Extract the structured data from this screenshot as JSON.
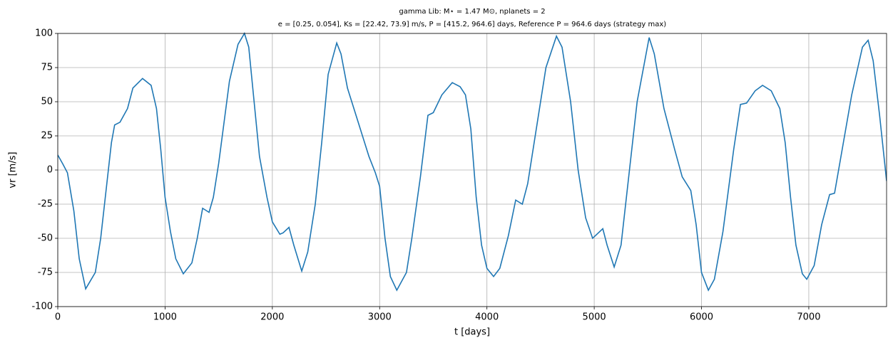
{
  "chart_data": {
    "type": "line",
    "title": "gamma Lib: M⋆ = 1.47 M⊙, nplanets = 2",
    "subtitle": "e = [0.25, 0.054], Ks = [22.42, 73.9] m/s, P = [415.2, 964.6] days, Reference P = 964.6 days (strategy max)",
    "x_label": "t [days]",
    "y_label": "vr [m/s]",
    "x": [
      0,
      50,
      90,
      150,
      200,
      260,
      350,
      400,
      450,
      500,
      530,
      580,
      650,
      700,
      790,
      870,
      920,
      960,
      1000,
      1050,
      1100,
      1170,
      1250,
      1300,
      1350,
      1410,
      1450,
      1500,
      1550,
      1600,
      1680,
      1740,
      1780,
      1830,
      1880,
      1950,
      2000,
      2070,
      2100,
      2155,
      2200,
      2274,
      2330,
      2400,
      2460,
      2520,
      2600,
      2640,
      2700,
      2800,
      2900,
      2960,
      3000,
      3050,
      3100,
      3160,
      3250,
      3300,
      3380,
      3450,
      3500,
      3580,
      3677,
      3750,
      3800,
      3850,
      3900,
      3950,
      4000,
      4062,
      4120,
      4200,
      4268,
      4330,
      4380,
      4450,
      4550,
      4648,
      4700,
      4780,
      4850,
      4920,
      4985,
      5080,
      5120,
      5186,
      5250,
      5300,
      5400,
      5512,
      5560,
      5650,
      5750,
      5820,
      5900,
      5950,
      6000,
      6064,
      6120,
      6200,
      6300,
      6363,
      6420,
      6500,
      6569,
      6650,
      6730,
      6780,
      6830,
      6880,
      6940,
      6981,
      7050,
      7120,
      7194,
      7240,
      7300,
      7400,
      7500,
      7553,
      7600,
      7660,
      7725
    ],
    "series": [
      {
        "color": "#1f77b4",
        "values": [
          11,
          4,
          -2,
          -30,
          -65,
          -87,
          -75,
          -50,
          -15,
          20,
          33,
          35,
          45,
          60,
          67,
          62,
          45,
          15,
          -20,
          -45,
          -65,
          -76,
          -68,
          -50,
          -28,
          -31,
          -20,
          5,
          35,
          65,
          92,
          100,
          90,
          50,
          10,
          -20,
          -38,
          -47,
          -46,
          -42,
          -55,
          -74,
          -60,
          -25,
          20,
          70,
          93,
          85,
          60,
          35,
          10,
          -2,
          -12,
          -50,
          -78,
          -88,
          -75,
          -50,
          -5,
          40,
          42,
          55,
          64,
          61,
          55,
          30,
          -20,
          -55,
          -72,
          -78,
          -72,
          -48,
          -22,
          -25,
          -10,
          25,
          75,
          98,
          90,
          50,
          0,
          -35,
          -50,
          -43,
          -55,
          -71,
          -55,
          -20,
          50,
          97,
          85,
          45,
          15,
          -5,
          -15,
          -40,
          -75,
          -88,
          -80,
          -45,
          15,
          48,
          49,
          58,
          62,
          58,
          45,
          20,
          -20,
          -55,
          -76,
          -80,
          -70,
          -40,
          -18,
          -17,
          10,
          55,
          90,
          95,
          80,
          40,
          -8
        ]
      }
    ],
    "xlim": [
      0,
      7725
    ],
    "ylim": [
      -100,
      100
    ],
    "xticks": [
      0,
      1000,
      2000,
      3000,
      4000,
      5000,
      6000,
      7000
    ],
    "yticks": [
      -100,
      -75,
      -50,
      -25,
      0,
      25,
      50,
      75,
      100
    ],
    "grid": true
  }
}
